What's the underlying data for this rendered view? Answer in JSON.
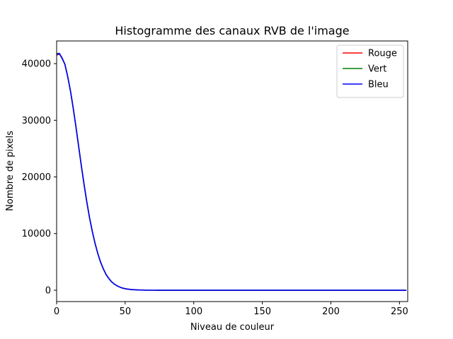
{
  "chart_data": {
    "type": "line",
    "title": "Histogramme des canaux RVB de l'image",
    "xlabel": "Niveau de couleur",
    "ylabel": "Nombre de pixels",
    "xlim": [
      0,
      256
    ],
    "ylim": [
      -2000,
      44000
    ],
    "xticks": [
      0,
      50,
      100,
      150,
      200,
      250
    ],
    "yticks": [
      0,
      10000,
      20000,
      30000,
      40000
    ],
    "grid": false,
    "legend_position": "top-right",
    "x": [
      0,
      2,
      4,
      6,
      8,
      10,
      12,
      14,
      16,
      18,
      20,
      22,
      24,
      26,
      28,
      30,
      32,
      34,
      36,
      38,
      40,
      42,
      44,
      46,
      48,
      50,
      52,
      55,
      60,
      65,
      70,
      75,
      80,
      90,
      100,
      120,
      150,
      200,
      255
    ],
    "series": [
      {
        "name": "Rouge",
        "color": "#ff0000",
        "values": [
          41500,
          41700,
          40900,
          39900,
          37800,
          35300,
          32300,
          29000,
          25500,
          22000,
          18700,
          15600,
          12800,
          10400,
          8300,
          6500,
          5000,
          3800,
          2800,
          2100,
          1500,
          1100,
          800,
          560,
          390,
          270,
          190,
          110,
          50,
          20,
          10,
          5,
          2,
          1,
          0,
          0,
          0,
          0,
          0
        ]
      },
      {
        "name": "Vert",
        "color": "#008000",
        "values": [
          41800,
          41800,
          40900,
          39900,
          37800,
          35300,
          32300,
          29000,
          25500,
          22000,
          18700,
          15600,
          12800,
          10400,
          8300,
          6500,
          5000,
          3800,
          2800,
          2100,
          1500,
          1100,
          800,
          560,
          390,
          270,
          190,
          110,
          50,
          20,
          10,
          5,
          2,
          1,
          0,
          0,
          0,
          0,
          0
        ]
      },
      {
        "name": "Bleu",
        "color": "#0000ff",
        "values": [
          41600,
          41800,
          41000,
          39900,
          37800,
          35300,
          32300,
          29000,
          25500,
          22000,
          18700,
          15600,
          12800,
          10400,
          8300,
          6500,
          5000,
          3800,
          2800,
          2100,
          1500,
          1100,
          800,
          560,
          390,
          270,
          190,
          110,
          50,
          20,
          10,
          5,
          2,
          1,
          0,
          0,
          0,
          0,
          0
        ]
      }
    ]
  }
}
